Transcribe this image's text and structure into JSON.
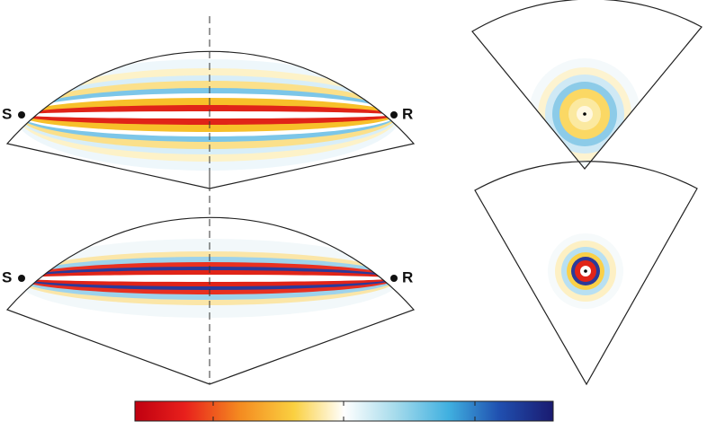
{
  "panels": [
    {
      "source": "S",
      "receiver": "R"
    },
    {
      "source": "S",
      "receiver": "R"
    }
  ]
}
